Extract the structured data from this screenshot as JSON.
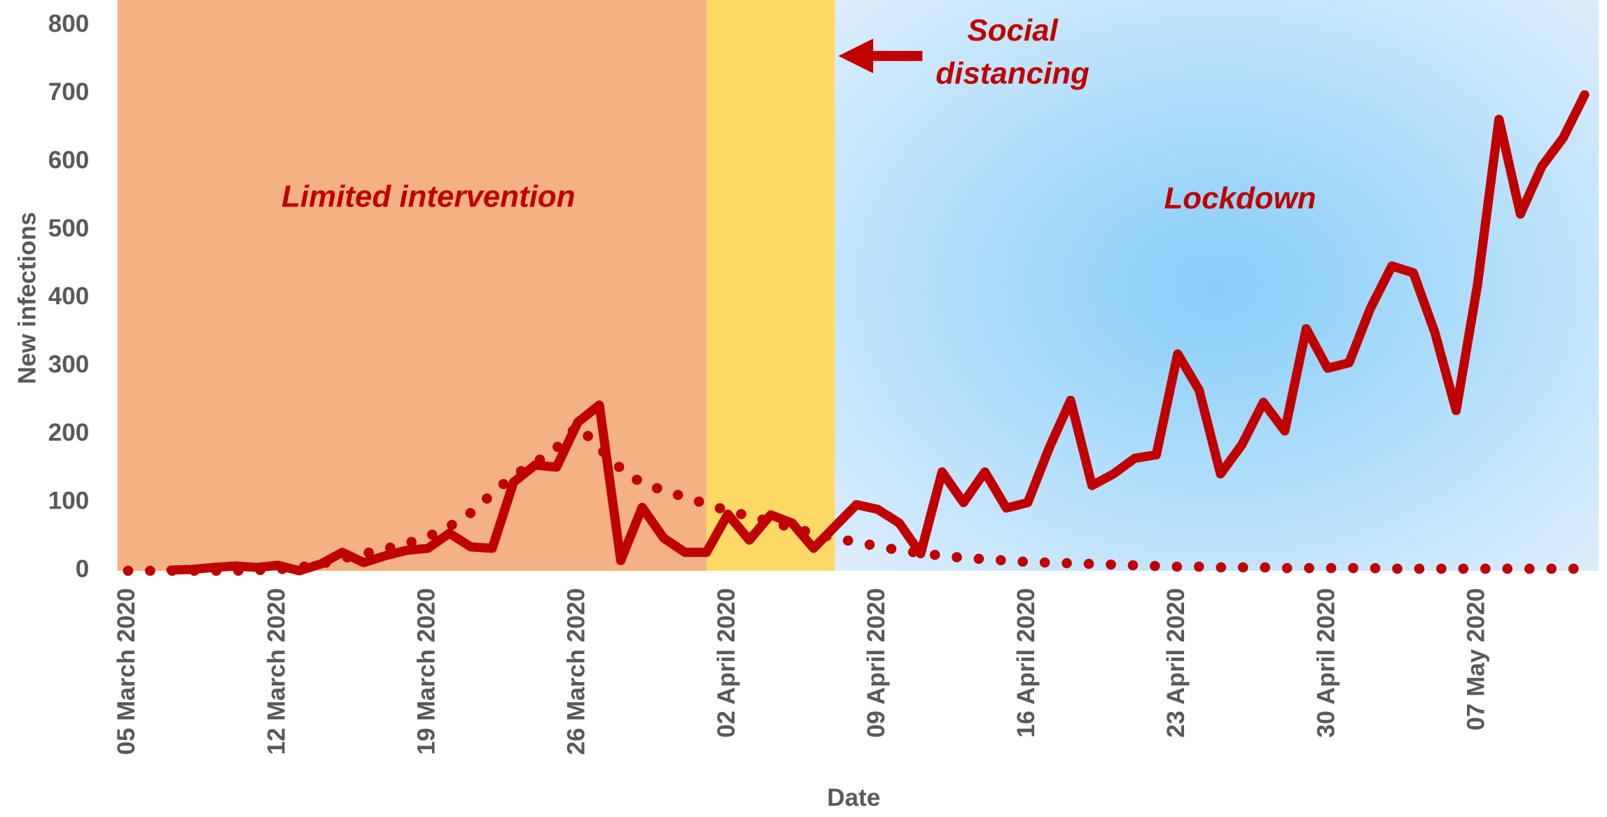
{
  "chart_data": {
    "type": "line",
    "xlabel": "Date",
    "ylabel": "New infections",
    "categories": [
      "05 March 2020",
      null,
      null,
      null,
      null,
      null,
      null,
      "12 March 2020",
      null,
      null,
      null,
      null,
      null,
      null,
      "19 March 2020",
      null,
      null,
      null,
      null,
      null,
      null,
      "26 March 2020",
      null,
      null,
      null,
      null,
      null,
      null,
      "02 April 2020",
      null,
      null,
      null,
      null,
      null,
      null,
      "09 April 2020",
      null,
      null,
      null,
      null,
      null,
      null,
      "16 April 2020",
      null,
      null,
      null,
      null,
      null,
      null,
      "23 April 2020",
      null,
      null,
      null,
      null,
      null,
      null,
      "30 April 2020",
      null,
      null,
      null,
      null,
      null,
      null,
      "07 May 2020",
      null,
      null,
      null,
      null,
      null
    ],
    "series": [
      {
        "color": "#c00000",
        "style": "solid",
        "values": [
          null,
          null,
          1,
          2,
          5,
          7,
          5,
          8,
          0,
          10,
          27,
          12,
          22,
          30,
          33,
          55,
          35,
          33,
          130,
          155,
          152,
          218,
          243,
          15,
          93,
          48,
          27,
          27,
          83,
          45,
          82,
          70,
          33,
          65,
          97,
          90,
          70,
          25,
          145,
          100,
          145,
          92,
          100,
          180,
          250,
          125,
          142,
          165,
          170,
          318,
          265,
          142,
          185,
          247,
          205,
          355,
          297,
          305,
          385,
          447,
          437,
          350,
          235,
          420,
          662,
          523,
          593,
          635,
          698
        ]
      },
      {
        "color": "#c00000",
        "style": "dotted",
        "values": [
          0,
          0,
          0,
          0,
          0,
          0,
          1,
          2,
          5,
          10,
          18,
          25,
          32,
          40,
          50,
          65,
          85,
          113,
          140,
          158,
          180,
          213,
          180,
          150,
          128,
          118,
          108,
          98,
          88,
          80,
          72,
          63,
          55,
          48,
          42,
          36,
          30,
          26,
          22,
          19,
          17,
          15,
          13,
          12,
          11,
          10,
          9,
          8,
          7,
          6,
          6,
          5,
          5,
          5,
          4,
          4,
          4,
          4,
          4,
          3,
          3,
          3,
          3,
          3,
          3,
          3,
          3,
          3,
          3
        ]
      }
    ],
    "ylim": [
      0,
      837
    ],
    "yticks": [
      0,
      100,
      200,
      300,
      400,
      500,
      600,
      700,
      800
    ],
    "regions": [
      {
        "label": "Limited intervention",
        "start": 0,
        "color": "#f4b183"
      },
      {
        "label": "Social distancing",
        "lines": [
          "Social",
          "distancing"
        ],
        "start": 27,
        "color": "#ffd966"
      },
      {
        "label": "Lockdown",
        "start": 33,
        "color": "#87cefa"
      }
    ]
  }
}
